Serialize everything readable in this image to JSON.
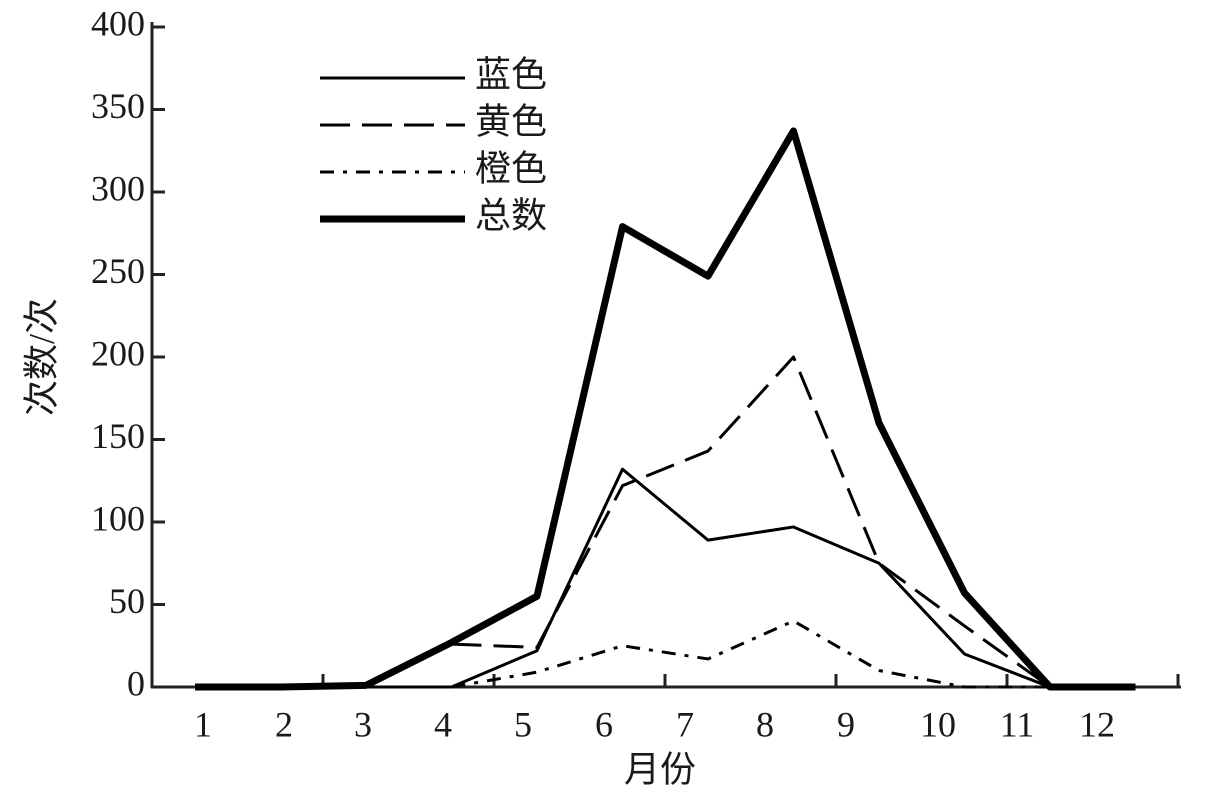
{
  "chart_data": {
    "type": "line",
    "x_label": "月份",
    "y_label": "次数/次",
    "categories": [
      "1",
      "2",
      "3",
      "4",
      "5",
      "6",
      "7",
      "8",
      "9",
      "10",
      "11",
      "12"
    ],
    "series": [
      {
        "name": "蓝色",
        "color": "#000000",
        "dash": "solid",
        "width": 3,
        "values": [
          null,
          null,
          0,
          0,
          22,
          132,
          89,
          97,
          75,
          20,
          0,
          null
        ]
      },
      {
        "name": "黄色",
        "color": "#000000",
        "dash": "dashed",
        "width": 3,
        "values": [
          null,
          null,
          null,
          26,
          24,
          122,
          143,
          200,
          75,
          37,
          0,
          null
        ]
      },
      {
        "name": "橙色",
        "color": "#000000",
        "dash": "dashdot",
        "width": 3,
        "values": [
          null,
          null,
          null,
          0,
          9,
          25,
          17,
          40,
          10,
          0,
          0,
          null
        ]
      },
      {
        "name": "总数",
        "color": "#000000",
        "dash": "solid",
        "width": 7,
        "values": [
          0,
          0,
          1,
          27,
          55,
          279,
          249,
          337,
          160,
          57,
          0,
          0
        ]
      }
    ],
    "ylim": [
      0,
      400
    ],
    "yticks": [
      0,
      50,
      100,
      150,
      200,
      250,
      300,
      350,
      400
    ]
  }
}
